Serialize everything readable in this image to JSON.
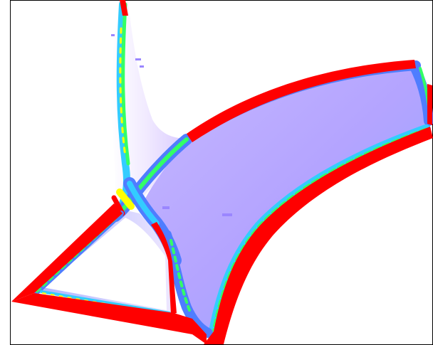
{
  "image": {
    "description_free": true,
    "colors": {
      "background": "#ffffff",
      "border": "#000000",
      "edge_red": "#ff0000",
      "band_yellow": "#ffff00",
      "band_green": "#33ff66",
      "band_cyan": "#33ccff",
      "band_blue": "#4f7dff",
      "surface_lavender": "#b6a8ff",
      "surface_pale": "#ece6ff"
    }
  }
}
